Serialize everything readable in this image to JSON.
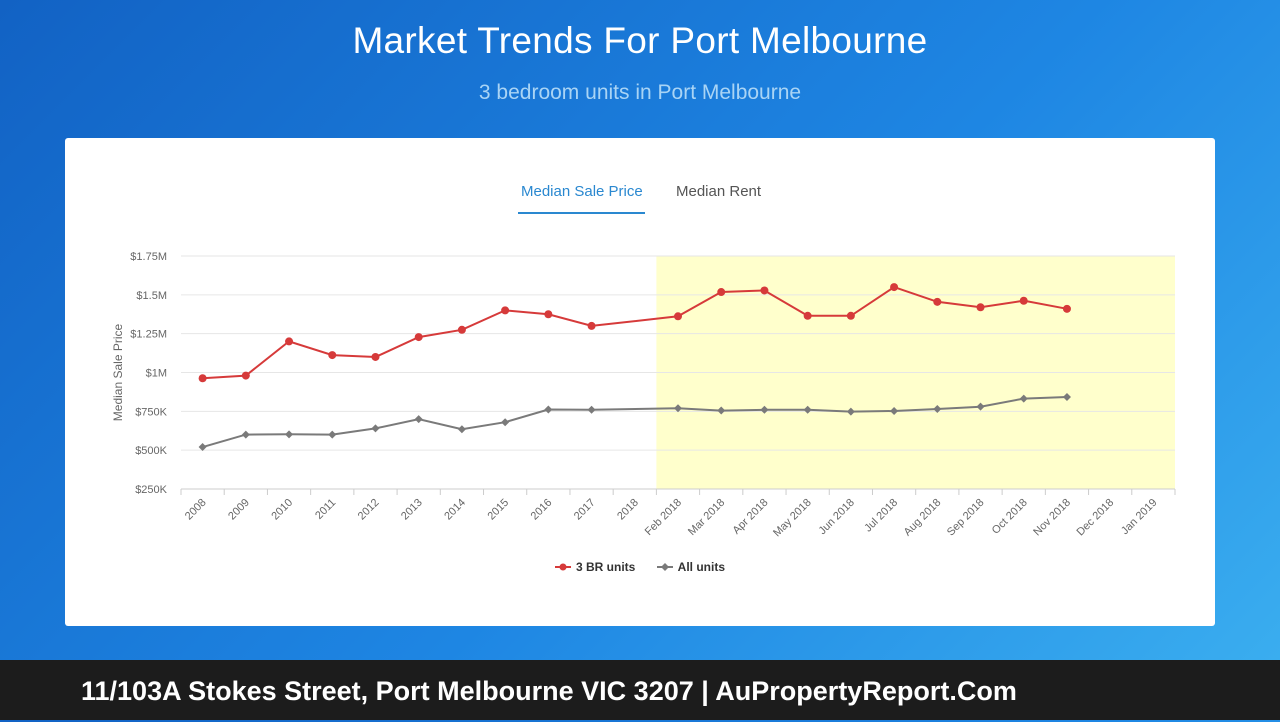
{
  "header": {
    "title": "Market Trends For Port Melbourne",
    "subtitle": "3 bedroom units in Port Melbourne"
  },
  "tabs": [
    {
      "label": "Median Sale Price",
      "active": true
    },
    {
      "label": "Median Rent",
      "active": false
    }
  ],
  "chart_data": {
    "type": "line",
    "ylabel": "Median Sale Price",
    "xlabel": "",
    "categories": [
      "2008",
      "2009",
      "2010",
      "2011",
      "2012",
      "2013",
      "2014",
      "2015",
      "2016",
      "2017",
      "2018",
      "Feb 2018",
      "Mar 2018",
      "Apr 2018",
      "May 2018",
      "Jun 2018",
      "Jul 2018",
      "Aug 2018",
      "Sep 2018",
      "Oct 2018",
      "Nov 2018",
      "Dec 2018",
      "Jan 2019"
    ],
    "ylim": [
      250000,
      1750000
    ],
    "yticks": [
      250000,
      500000,
      750000,
      1000000,
      1250000,
      1500000,
      1750000
    ],
    "ytick_labels": [
      "$250K",
      "$500K",
      "$750K",
      "$1M",
      "$1.25M",
      "$1.5M",
      "$1.75M"
    ],
    "highlight_range": [
      "Feb 2018",
      "Jan 2019"
    ],
    "highlight_color": "#ffffcc",
    "grid": true,
    "legend_position": "bottom-center",
    "series": [
      {
        "name": "3 BR units",
        "color": "#d63a3a",
        "marker": "circle",
        "values": [
          963000,
          980000,
          1200000,
          1112000,
          1100000,
          1228000,
          1275000,
          1400000,
          1375000,
          1300000,
          null,
          1362000,
          1518000,
          1528000,
          1365000,
          1365000,
          1550000,
          1455000,
          1420000,
          1462000,
          1410000,
          null,
          null
        ]
      },
      {
        "name": "All units",
        "color": "#7a7a7a",
        "marker": "diamond",
        "values": [
          520000,
          600000,
          602000,
          600000,
          640000,
          700000,
          635000,
          680000,
          762000,
          760000,
          null,
          770000,
          755000,
          760000,
          760000,
          748000,
          752000,
          765000,
          780000,
          832000,
          842000,
          null,
          null
        ]
      }
    ]
  },
  "footer": {
    "text": "11/103A Stokes Street, Port Melbourne VIC 3207 | AuPropertyReport.Com"
  }
}
